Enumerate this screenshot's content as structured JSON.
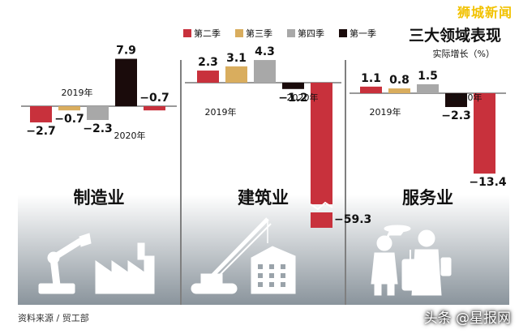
{
  "brand": "狮城新闻",
  "title": "三大领域表现",
  "unit_label": "实际增长（%）",
  "source": "资料来源 / 贸工部",
  "watermark": "头条 @星报网",
  "colors": {
    "q2": "#c8313c",
    "q3": "#d9ad5e",
    "q4": "#a8a8a8",
    "q1": "#1a0b0b",
    "panel_top": "#ffffff",
    "panel_bottom": "#8a949c"
  },
  "chart_data": {
    "type": "bar",
    "unit": "%",
    "legend": [
      "第二季",
      "第三季",
      "第四季",
      "第一季"
    ],
    "legend_position": "top",
    "year_labels": [
      "2019年",
      "2020年"
    ],
    "panels": [
      {
        "name": "制造业",
        "icon": "robot-arm-factory-icon",
        "bars": [
          {
            "quarter": "第二季",
            "year": "2019年",
            "value": -2.7,
            "label": "−2.7"
          },
          {
            "quarter": "第三季",
            "year": "2019年",
            "value": -0.7,
            "label": "−0.7"
          },
          {
            "quarter": "第四季",
            "year": "2019年",
            "value": -2.3,
            "label": "−2.3"
          },
          {
            "quarter": "第一季",
            "year": "2019年",
            "value": 7.9,
            "label": "7.9"
          },
          {
            "quarter": "第二季",
            "year": "2020年",
            "value": -0.7,
            "label": "−0.7"
          }
        ]
      },
      {
        "name": "建筑业",
        "icon": "crane-building-icon",
        "bars": [
          {
            "quarter": "第二季",
            "year": "2019年",
            "value": 2.3,
            "label": "2.3"
          },
          {
            "quarter": "第三季",
            "year": "2019年",
            "value": 3.1,
            "label": "3.1"
          },
          {
            "quarter": "第四季",
            "year": "2019年",
            "value": 4.3,
            "label": "4.3"
          },
          {
            "quarter": "第一季",
            "year": "2019年",
            "value": -1.2,
            "label": "−1.2"
          },
          {
            "quarter": "第二季",
            "year": "2020年",
            "value": -59.3,
            "label": "−59.3"
          }
        ]
      },
      {
        "name": "服务业",
        "icon": "service-staff-traveler-icon",
        "bars": [
          {
            "quarter": "第二季",
            "year": "2019年",
            "value": 1.1,
            "label": "1.1"
          },
          {
            "quarter": "第三季",
            "year": "2019年",
            "value": 0.8,
            "label": "0.8"
          },
          {
            "quarter": "第四季",
            "year": "2019年",
            "value": 1.5,
            "label": "1.5"
          },
          {
            "quarter": "第一季",
            "year": "2019年",
            "value": -2.3,
            "label": "−2.3"
          },
          {
            "quarter": "第二季",
            "year": "2020年",
            "value": -13.4,
            "label": "−13.4"
          }
        ]
      }
    ]
  }
}
